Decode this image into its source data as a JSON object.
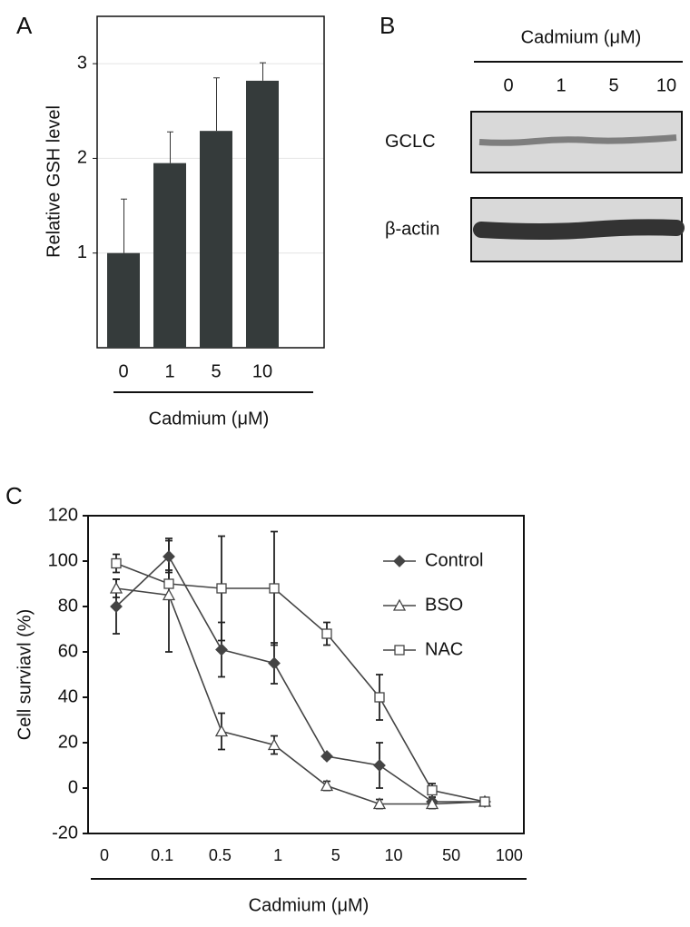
{
  "chart_data": [
    {
      "type": "bar",
      "panel_label": "A",
      "y_label": "Relative GSH level",
      "x_label": "Cadmium (μM)",
      "categories": [
        "0",
        "1",
        "5",
        "10"
      ],
      "values": [
        1.0,
        1.95,
        2.29,
        2.82
      ],
      "errors": [
        0.57,
        0.33,
        0.56,
        0.19
      ],
      "color": "#353b3b",
      "ylim": [
        0,
        3.5
      ],
      "yticks": [
        1,
        2,
        3
      ],
      "grid": true
    },
    {
      "type": "blot",
      "panel_label": "B",
      "title": "Cadmium (μM)",
      "lanes": [
        "0",
        "1",
        "5",
        "10"
      ],
      "rows": [
        "GCLC",
        "β-actin"
      ]
    },
    {
      "type": "line",
      "panel_label": "C",
      "y_label": "Cell surviavl (%)",
      "x_label": "Cadmium (μM)",
      "categories": [
        "0",
        "0.1",
        "0.5",
        "1",
        "5",
        "10",
        "50",
        "100"
      ],
      "ylim": [
        -20,
        120
      ],
      "yticks": [
        -20,
        0,
        20,
        40,
        60,
        80,
        100,
        120
      ],
      "series": [
        {
          "name": "Control",
          "color": "#444444",
          "marker": "diamond",
          "fill": "#444444",
          "values": [
            80,
            102,
            61,
            55,
            14,
            10,
            -6,
            -6
          ],
          "errors": [
            12,
            7,
            12,
            9,
            1,
            10,
            2,
            0
          ]
        },
        {
          "name": "BSO",
          "color": "#444444",
          "marker": "triangle",
          "fill": "#ffffff",
          "values": [
            88,
            85,
            25,
            19,
            1,
            -7,
            -7,
            -6
          ],
          "errors": [
            4,
            25,
            8,
            4,
            2,
            2,
            2,
            0
          ]
        },
        {
          "name": "NAC",
          "color": "#444444",
          "marker": "square",
          "fill": "#ffffff",
          "values": [
            99,
            90,
            88,
            88,
            68,
            40,
            -1,
            -6
          ],
          "errors": [
            4,
            6,
            23,
            25,
            5,
            10,
            3,
            0
          ]
        }
      ]
    }
  ]
}
